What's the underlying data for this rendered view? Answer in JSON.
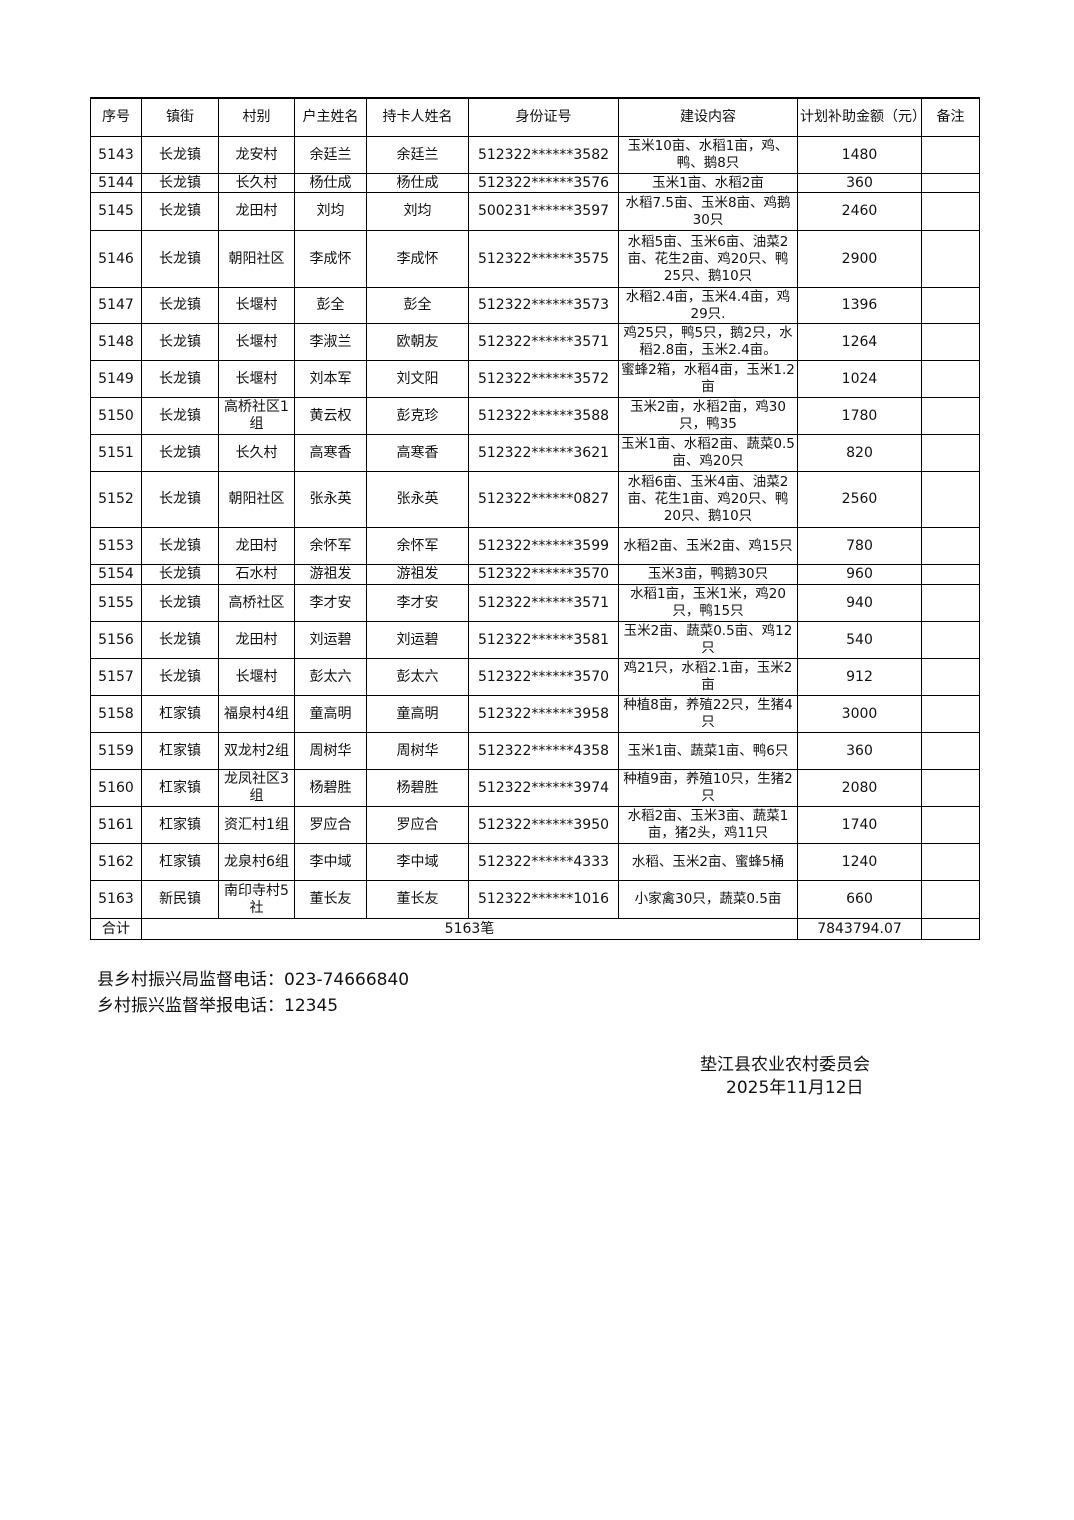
{
  "table": {
    "headers": [
      "序号",
      "镇街",
      "村别",
      "户主姓名",
      "持卡人姓名",
      "身份证号",
      "建设内容",
      "计划补助金额（元）",
      "备注"
    ],
    "rows": [
      [
        "5143",
        "长龙镇",
        "龙安村",
        "余廷兰",
        "余廷兰",
        "512322******3582",
        "玉米10亩、水稻1亩，鸡、鸭、鹅8只",
        "1480",
        ""
      ],
      [
        "5144",
        "长龙镇",
        "长久村",
        "杨仕成",
        "杨仕成",
        "512322******3576",
        "玉米1亩、水稻2亩",
        "360",
        ""
      ],
      [
        "5145",
        "长龙镇",
        "龙田村",
        "刘均",
        "刘均",
        "500231******3597",
        "水稻7.5亩、玉米8亩、鸡鹅30只",
        "2460",
        ""
      ],
      [
        "5146",
        "长龙镇",
        "朝阳社区",
        "李成怀",
        "李成怀",
        "512322******3575",
        "水稻5亩、玉米6亩、油菜2亩、花生2亩、鸡20只、鸭25只、鹅10只",
        "2900",
        ""
      ],
      [
        "5147",
        "长龙镇",
        "长堰村",
        "彭全",
        "彭全",
        "512322******3573",
        "水稻2.4亩，玉米4.4亩，鸡29只.",
        "1396",
        ""
      ],
      [
        "5148",
        "长龙镇",
        "长堰村",
        "李淑兰",
        "欧朝友",
        "512322******3571",
        "鸡25只，鸭5只，鹅2只，水稻2.8亩，玉米2.4亩。",
        "1264",
        ""
      ],
      [
        "5149",
        "长龙镇",
        "长堰村",
        "刘本军",
        "刘文阳",
        "512322******3572",
        "蜜蜂2箱，水稻4亩，玉米1.2亩",
        "1024",
        ""
      ],
      [
        "5150",
        "长龙镇",
        "高桥社区1组",
        "黄云权",
        "彭克珍",
        "512322******3588",
        "玉米2亩，水稻2亩，鸡30只，鸭35",
        "1780",
        ""
      ],
      [
        "5151",
        "长龙镇",
        "长久村",
        "高寒香",
        "高寒香",
        "512322******3621",
        "玉米1亩、水稻2亩、蔬菜0.5亩、鸡20只",
        "820",
        ""
      ],
      [
        "5152",
        "长龙镇",
        "朝阳社区",
        "张永英",
        "张永英",
        "512322******0827",
        "水稻6亩、玉米4亩、油菜2亩、花生1亩、鸡20只、鸭20只、鹅10只",
        "2560",
        ""
      ],
      [
        "5153",
        "长龙镇",
        "龙田村",
        "余怀军",
        "余怀军",
        "512322******3599",
        "水稻2亩、玉米2亩、鸡15只",
        "780",
        ""
      ],
      [
        "5154",
        "长龙镇",
        "石水村",
        "游祖发",
        "游祖发",
        "512322******3570",
        "玉米3亩，鸭鹅30只",
        "960",
        ""
      ],
      [
        "5155",
        "长龙镇",
        "高桥社区",
        "李才安",
        "李才安",
        "512322******3571",
        "水稻1亩，玉米1米，鸡20只，鸭15只",
        "940",
        ""
      ],
      [
        "5156",
        "长龙镇",
        "龙田村",
        "刘运碧",
        "刘运碧",
        "512322******3581",
        "玉米2亩、蔬菜0.5亩、鸡12只",
        "540",
        ""
      ],
      [
        "5157",
        "长龙镇",
        "长堰村",
        "彭太六",
        "彭太六",
        "512322******3570",
        "鸡21只，水稻2.1亩，玉米2亩",
        "912",
        ""
      ],
      [
        "5158",
        "杠家镇",
        "福泉村4组",
        "童高明",
        "童高明",
        "512322******3958",
        "种植8亩，养殖22只，生猪4只",
        "3000",
        ""
      ],
      [
        "5159",
        "杠家镇",
        "双龙村2组",
        "周树华",
        "周树华",
        "512322******4358",
        "玉米1亩、蔬菜1亩、鸭6只",
        "360",
        ""
      ],
      [
        "5160",
        "杠家镇",
        "龙凤社区3组",
        "杨碧胜",
        "杨碧胜",
        "512322******3974",
        "种植9亩，养殖10只，生猪2只",
        "2080",
        ""
      ],
      [
        "5161",
        "杠家镇",
        "资汇村1组",
        "罗应合",
        "罗应合",
        "512322******3950",
        "水稻2亩、玉米3亩、蔬菜1亩，猪2头，鸡11只",
        "1740",
        ""
      ],
      [
        "5162",
        "杠家镇",
        "龙泉村6组",
        "李中域",
        "李中域",
        "512322******4333",
        "水稻、玉米2亩、蜜蜂5桶",
        "1240",
        ""
      ],
      [
        "5163",
        "新民镇",
        "南印寺村5社",
        "董长友",
        "董长友",
        "512322******1016",
        "小家禽30只，蔬菜0.5亩",
        "660",
        ""
      ]
    ],
    "total": {
      "label": "合计",
      "count": "5163笔",
      "amount": "7843794.07",
      "note": ""
    }
  },
  "footer": {
    "supervision_phone": "县乡村振兴局监督电话：023-74666840",
    "report_phone": "乡村振兴监督举报电话：12345",
    "issuer": "垫江县农业农村委员会",
    "date": "2025年11月12日"
  }
}
